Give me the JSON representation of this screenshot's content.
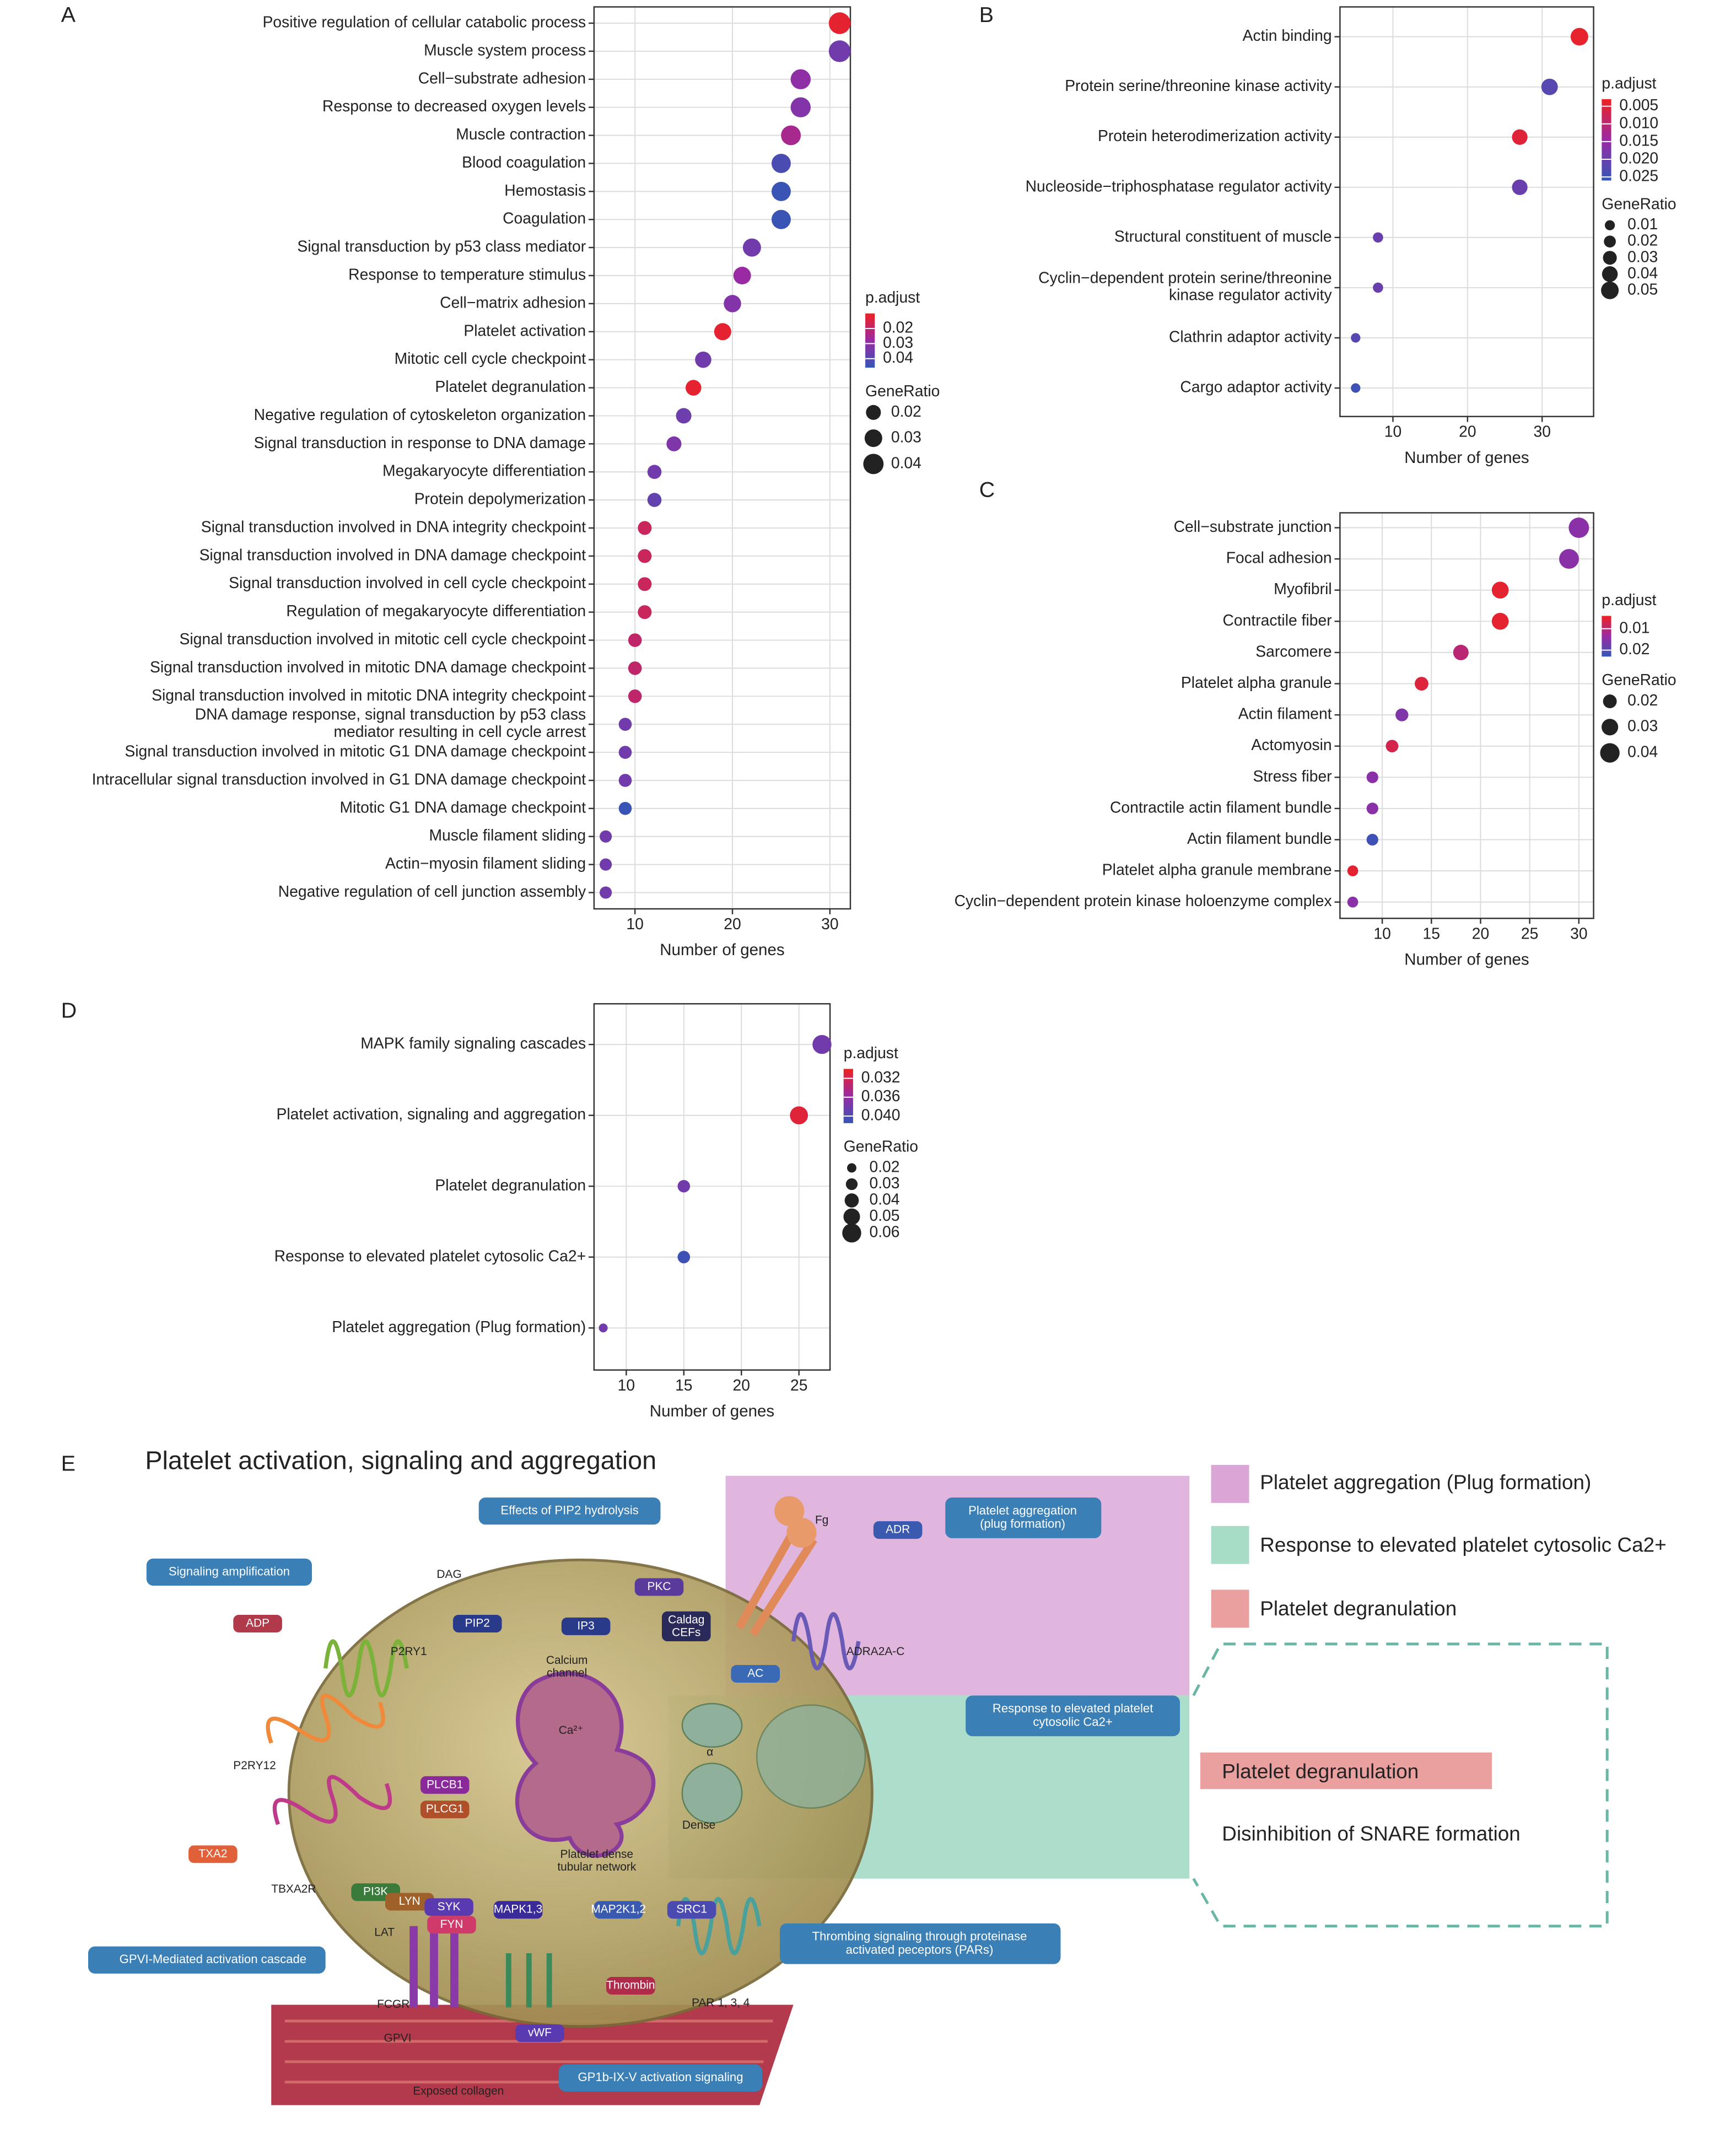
{
  "chart_data": [
    {
      "type": "dotplot",
      "panel_label": "A",
      "xlabel": "Number of genes",
      "color_title": "p.adjust",
      "size_title": "GeneRatio",
      "categories": [
        "Positive regulation of cellular catabolic process",
        "Muscle system process",
        "Cell−substrate adhesion",
        "Response to decreased oxygen levels",
        "Muscle contraction",
        "Blood coagulation",
        "Hemostasis",
        "Coagulation",
        "Signal transduction by p53 class mediator",
        "Response to temperature stimulus",
        "Cell−matrix adhesion",
        "Platelet activation",
        "Mitotic cell cycle checkpoint",
        "Platelet degranulation",
        "Negative regulation of cytoskeleton organization",
        "Signal transduction in response to DNA damage",
        "Megakaryocyte differentiation",
        "Protein depolymerization",
        "Signal transduction involved in DNA integrity checkpoint",
        "Signal transduction involved in DNA damage checkpoint",
        "Signal transduction involved in cell cycle checkpoint",
        "Regulation of megakaryocyte differentiation",
        "Signal transduction involved in mitotic cell cycle checkpoint",
        "Signal transduction involved in mitotic DNA damage checkpoint",
        "Signal transduction involved in mitotic DNA integrity checkpoint",
        "DNA damage response, signal transduction by p53 class\nmediator resulting in cell cycle arrest",
        "Signal transduction involved in mitotic G1 DNA damage checkpoint",
        "Intracellular signal transduction involved in G1 DNA damage checkpoint",
        "Mitotic G1 DNA damage checkpoint",
        "Muscle filament sliding",
        "Actin−myosin filament sliding",
        "Negative regulation of cell junction assembly"
      ],
      "values": [
        31,
        31,
        27,
        27,
        26,
        25,
        25,
        25,
        22,
        21,
        20,
        19,
        17,
        16,
        15,
        14,
        12,
        12,
        11,
        11,
        11,
        11,
        10,
        10,
        10,
        9,
        9,
        9,
        9,
        7,
        7,
        7
      ],
      "p_adjust": [
        0.012,
        0.035,
        0.03,
        0.032,
        0.025,
        0.042,
        0.045,
        0.045,
        0.035,
        0.028,
        0.032,
        0.012,
        0.035,
        0.012,
        0.036,
        0.033,
        0.035,
        0.038,
        0.018,
        0.018,
        0.018,
        0.018,
        0.02,
        0.02,
        0.02,
        0.035,
        0.035,
        0.035,
        0.045,
        0.035,
        0.035,
        0.035
      ],
      "gene_ratio": [
        0.045,
        0.045,
        0.039,
        0.039,
        0.038,
        0.036,
        0.036,
        0.036,
        0.032,
        0.03,
        0.029,
        0.028,
        0.025,
        0.023,
        0.022,
        0.02,
        0.017,
        0.017,
        0.016,
        0.016,
        0.016,
        0.016,
        0.015,
        0.015,
        0.015,
        0.013,
        0.013,
        0.013,
        0.013,
        0.01,
        0.01,
        0.01
      ],
      "xlim": [
        5.8,
        32.1
      ],
      "xticks": [
        10,
        20,
        30
      ],
      "color_lim": [
        0.01,
        0.046
      ],
      "color_ticks": [
        0.02,
        0.03,
        0.04
      ],
      "size_lim": [
        0.01,
        0.045
      ],
      "size_ticks": [
        0.02,
        0.03,
        0.04
      ],
      "colorscale": [
        "#ee2222",
        "#9a2aa4",
        "#3456b6"
      ],
      "grid": true
    },
    {
      "type": "dotplot",
      "panel_label": "B",
      "xlabel": "Number of genes",
      "color_title": "p.adjust",
      "size_title": "GeneRatio",
      "categories": [
        "Actin binding",
        "Protein serine/threonine kinase activity",
        "Protein heterodimerization activity",
        "Nucleoside−triphosphatase regulator activity",
        "Structural constituent of muscle",
        "Cyclin−dependent protein serine/threonine\nkinase regulator activity",
        "Clathrin adaptor activity",
        "Cargo adaptor activity"
      ],
      "values": [
        35,
        31,
        27,
        27,
        8,
        8,
        5,
        5
      ],
      "p_adjust": [
        0.004,
        0.022,
        0.005,
        0.02,
        0.02,
        0.02,
        0.022,
        0.025
      ],
      "gene_ratio": [
        0.05,
        0.044,
        0.039,
        0.039,
        0.011,
        0.011,
        0.007,
        0.007
      ],
      "xlim": [
        2.9,
        36.9
      ],
      "xticks": [
        10,
        20,
        30
      ],
      "color_lim": [
        0.003,
        0.026
      ],
      "color_ticks": [
        {
          "value": 0.005,
          "label": "0.005"
        },
        {
          "value": 0.01,
          "label": "0.010"
        },
        {
          "value": 0.015,
          "label": "0.015"
        },
        {
          "value": 0.02,
          "label": "0.020"
        },
        {
          "value": 0.025,
          "label": "0.025"
        }
      ],
      "size_lim": [
        0.007,
        0.05
      ],
      "size_ticks": [
        0.01,
        0.02,
        0.03,
        0.04,
        0.05
      ],
      "colorscale": [
        "#ee2222",
        "#9a2aa4",
        "#3456b6"
      ],
      "grid": true
    },
    {
      "type": "dotplot",
      "panel_label": "C",
      "xlabel": "Number of genes",
      "color_title": "p.adjust",
      "size_title": "GeneRatio",
      "categories": [
        "Cell−substrate junction",
        "Focal adhesion",
        "Myofibril",
        "Contractile fiber",
        "Sarcomere",
        "Platelet alpha granule",
        "Actin filament",
        "Actomyosin",
        "Stress fiber",
        "Contractile actin filament bundle",
        "Actin filament bundle",
        "Platelet alpha granule membrane",
        "Cyclin−dependent protein kinase holoenzyme complex"
      ],
      "values": [
        30,
        29,
        22,
        22,
        18,
        14,
        12,
        11,
        9,
        9,
        9,
        7,
        7
      ],
      "p_adjust": [
        0.015,
        0.015,
        0.005,
        0.005,
        0.01,
        0.006,
        0.016,
        0.007,
        0.015,
        0.015,
        0.022,
        0.005,
        0.015
      ],
      "gene_ratio": [
        0.043,
        0.041,
        0.031,
        0.031,
        0.026,
        0.02,
        0.017,
        0.016,
        0.013,
        0.013,
        0.013,
        0.01,
        0.01
      ],
      "xlim": [
        5.7,
        31.5
      ],
      "xticks": [
        10,
        15,
        20,
        25,
        30
      ],
      "color_lim": [
        0.004,
        0.023
      ],
      "color_ticks": [
        0.01,
        0.02
      ],
      "size_lim": [
        0.01,
        0.043
      ],
      "size_ticks": [
        0.02,
        0.03,
        0.04
      ],
      "colorscale": [
        "#ee2222",
        "#9a2aa4",
        "#3456b6"
      ],
      "grid": true
    },
    {
      "type": "dotplot",
      "panel_label": "D",
      "xlabel": "Number of genes",
      "color_title": "p.adjust",
      "size_title": "GeneRatio",
      "categories": [
        "MAPK family signaling cascades",
        "Platelet activation, signaling and aggregation",
        "Platelet degranulation ",
        "Response to elevated platelet cytosolic Ca2+",
        "Platelet aggregation (Plug formation)"
      ],
      "values": [
        27,
        25,
        15,
        15,
        8
      ],
      "p_adjust": [
        0.038,
        0.031,
        0.038,
        0.041,
        0.038
      ],
      "gene_ratio": [
        0.06,
        0.056,
        0.033,
        0.033,
        0.018
      ],
      "xlim": [
        7.2,
        27.7
      ],
      "xticks": [
        10,
        15,
        20,
        25
      ],
      "color_lim": [
        0.03,
        0.0415
      ],
      "color_ticks": [
        0.032,
        0.036,
        {
          "value": 0.04,
          "label": "0.040"
        }
      ],
      "size_lim": [
        0.015,
        0.06
      ],
      "size_ticks": [
        0.02,
        0.03,
        0.04,
        0.05,
        0.06
      ],
      "colorscale": [
        "#ee2222",
        "#9a2aa4",
        "#3456b6"
      ],
      "grid": true
    }
  ],
  "diagram": {
    "panel_label": "E",
    "title": "Platelet activation, signaling and aggregation",
    "legend": [
      "Platelet aggregation (Plug formation)",
      "Response to elevated platelet cytosolic Ca2+",
      "Platelet degranulation"
    ],
    "degranulation_label": "Platelet degranulation",
    "snare": "Disinhibition of SNARE formation",
    "boxes": [
      "Signaling amplification",
      "Effects of PIP2 hydrolysis",
      "Platelet aggregation\n(plug formation)",
      "Response to elevated platelet\ncytosolic Ca2+",
      "GPVI-Mediated activation cascade",
      "Thrombing signaling through proteinase\nactivated peceptors (PARs)",
      "GP1b-IX-V activation signaling"
    ],
    "molecules": [
      "ADP",
      "TXA2",
      "PIP2",
      "IP3",
      "PKC",
      "Caldag\nCEFs",
      "AC",
      "ADR",
      "PLCB1",
      "PLCG1",
      "PI3K",
      "LYN",
      "SYK",
      "FYN",
      "MAPK1,3",
      "MAP2K1,2",
      "SRC1",
      "Thrombin",
      "vWF"
    ],
    "annotations": [
      "P2RY1",
      "P2RY12",
      "TBXA2R",
      "DAG",
      "Calcium\nchannel",
      "Ca²⁺",
      "ADRA2A-C",
      "Fg",
      "Platelet dense\ntubular network",
      "α",
      "Dense",
      "PAR 1, 3, 4",
      "FCGR",
      "GPVI",
      "Exposed collagen",
      "LAT"
    ]
  }
}
